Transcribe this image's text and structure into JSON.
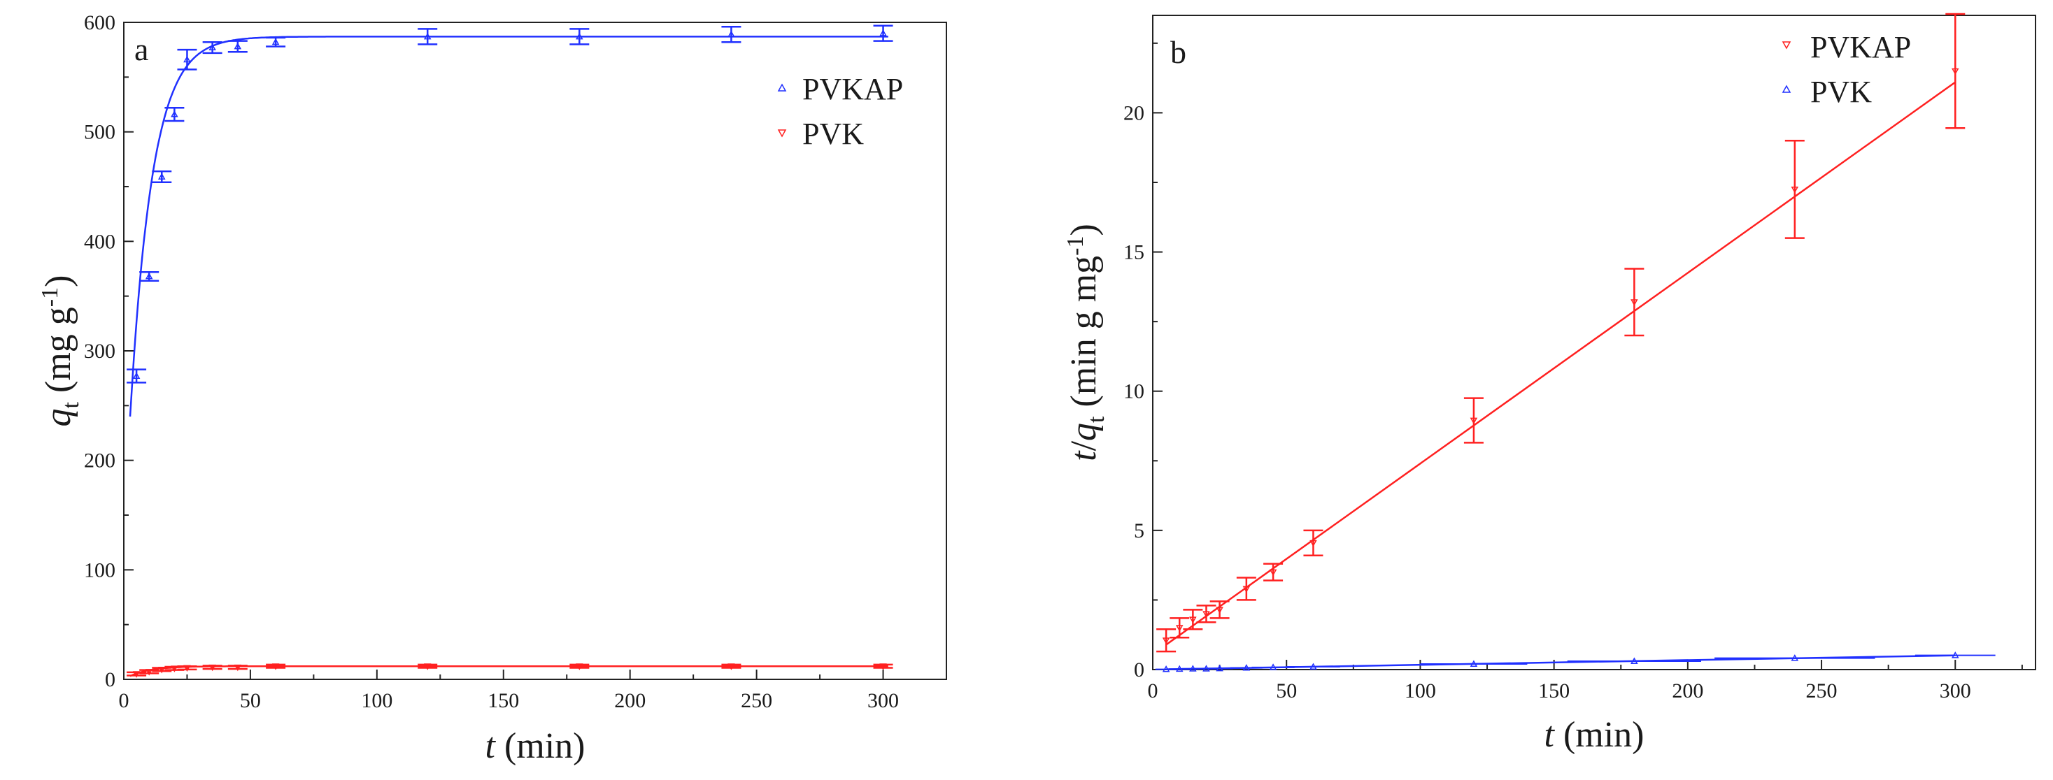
{
  "figure": {
    "colors": {
      "red": "#ff2020",
      "blue": "#2030ff",
      "axis": "#222222"
    }
  },
  "chart_data": [
    {
      "panel": "a",
      "type": "scatter",
      "title": "",
      "xlabel_var": "t",
      "xlabel_unit": " (min)",
      "ylabel_var": "q",
      "ylabel_sub": "t",
      "ylabel_unit_pre": " (mg g",
      "ylabel_unit_sup": "-1",
      "ylabel_unit_post": ")",
      "xlim": [
        0,
        325
      ],
      "ylim": [
        0,
        600
      ],
      "xticks": [
        0,
        50,
        100,
        150,
        200,
        250,
        300
      ],
      "yticks": [
        0,
        100,
        200,
        300,
        400,
        500,
        600
      ],
      "legend": [
        "PVKAP",
        "PVK"
      ],
      "series": [
        {
          "name": "PVKAP",
          "color": "#2030ff",
          "marker": "triangle",
          "x": [
            5,
            10,
            15,
            20,
            25,
            35,
            45,
            60,
            120,
            180,
            240,
            300
          ],
          "y": [
            277,
            368,
            459,
            516,
            566,
            577,
            578,
            582,
            587,
            587,
            589,
            590
          ],
          "err": [
            6,
            4,
            5,
            6,
            9,
            5,
            5,
            4,
            7,
            7,
            7,
            7
          ],
          "fit": {
            "model": "pseudo-first-order",
            "qe": 587,
            "k": 0.12,
            "x0": 2.5
          }
        },
        {
          "name": "PVK",
          "color": "#ff2020",
          "marker": "triangle-down",
          "x": [
            5,
            10,
            15,
            20,
            25,
            35,
            45,
            60,
            120,
            180,
            240,
            300
          ],
          "y": [
            5,
            7,
            9,
            10,
            10.5,
            11,
            11,
            12,
            12,
            12,
            12,
            12
          ],
          "err": [
            1.5,
            1.5,
            1.5,
            1.5,
            1.5,
            1.5,
            1.5,
            1.5,
            1.5,
            1.5,
            1.5,
            1.5
          ],
          "fit": {
            "model": "pseudo-first-order",
            "qe": 12,
            "k": 0.12,
            "x0": 2.5
          }
        }
      ]
    },
    {
      "panel": "b",
      "type": "scatter",
      "title": "",
      "xlabel_var": "t",
      "xlabel_unit": " (min)",
      "ylabel_var": "t",
      "ylabel_slash": "/",
      "ylabel_var2": "q",
      "ylabel_sub": "t",
      "ylabel_unit_pre": " (min g mg",
      "ylabel_unit_sup": "-1",
      "ylabel_unit_post": ")",
      "xlim": [
        0,
        330
      ],
      "ylim": [
        0,
        23.5
      ],
      "xticks": [
        0,
        50,
        100,
        150,
        200,
        250,
        300
      ],
      "yticks": [
        0,
        5,
        10,
        15,
        20
      ],
      "legend": [
        "PVKAP",
        "PVK"
      ],
      "series": [
        {
          "name": "PVKAP",
          "color": "#ff2020",
          "marker": "triangle-down",
          "x": [
            5,
            10,
            15,
            20,
            25,
            35,
            45,
            60,
            120,
            180,
            240,
            300
          ],
          "y": [
            1.05,
            1.5,
            1.8,
            2.0,
            2.15,
            2.9,
            3.5,
            4.55,
            8.95,
            13.2,
            17.25,
            21.5
          ],
          "err": [
            0.4,
            0.35,
            0.35,
            0.3,
            0.3,
            0.4,
            0.3,
            0.45,
            0.8,
            1.2,
            1.75,
            2.05
          ],
          "fit": {
            "slope": 0.0685,
            "intercept": 0.55,
            "x_start": 5,
            "x_end": 300
          }
        },
        {
          "name": "PVK",
          "color": "#2030ff",
          "marker": "triangle",
          "x": [
            5,
            10,
            15,
            20,
            25,
            35,
            45,
            60,
            120,
            180,
            240,
            300
          ],
          "y": [
            0.01,
            0.02,
            0.03,
            0.03,
            0.04,
            0.06,
            0.08,
            0.1,
            0.2,
            0.3,
            0.41,
            0.51
          ],
          "xerr": [
            4,
            4,
            4,
            4,
            5,
            6,
            8,
            10,
            20,
            25,
            30,
            15
          ],
          "fit": {
            "slope": 0.0017,
            "intercept": 0.0,
            "x_start": 5,
            "x_end": 300
          }
        }
      ]
    }
  ]
}
